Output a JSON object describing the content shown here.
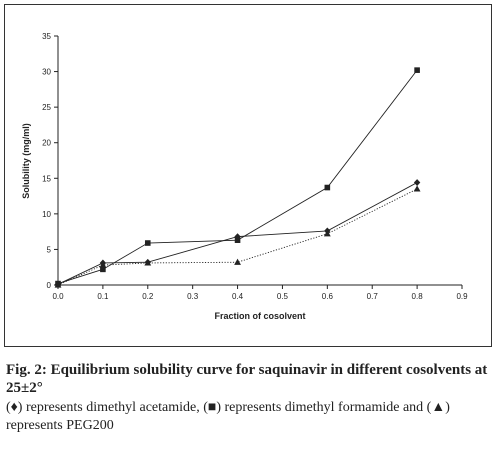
{
  "chart_data": {
    "type": "line",
    "xlabel": "Fraction of cosolvent",
    "ylabel": "Solubility (mg/ml)",
    "xlim": [
      0.0,
      0.9
    ],
    "ylim": [
      0,
      35
    ],
    "x_ticks": [
      "0.0",
      "0.1",
      "0.2",
      "0.3",
      "0.4",
      "0.5",
      "0.6",
      "0.7",
      "0.8",
      "0.9"
    ],
    "y_ticks": [
      "0",
      "5",
      "10",
      "15",
      "20",
      "25",
      "30",
      "35"
    ],
    "grid": false,
    "series": [
      {
        "marker": "diamond",
        "line_style": "solid",
        "x": [
          0.0,
          0.1,
          0.2,
          0.4,
          0.6,
          0.8
        ],
        "y": [
          0.1,
          3.1,
          3.2,
          6.8,
          7.6,
          14.4
        ]
      },
      {
        "marker": "square",
        "line_style": "solid",
        "x": [
          0.0,
          0.1,
          0.2,
          0.4,
          0.6,
          0.8
        ],
        "y": [
          0.2,
          2.2,
          5.9,
          6.3,
          13.7,
          30.2
        ]
      },
      {
        "marker": "triangle",
        "line_style": "dotted",
        "x": [
          0.0,
          0.1,
          0.2,
          0.4,
          0.6,
          0.8
        ],
        "y": [
          0.0,
          2.8,
          3.1,
          3.2,
          7.2,
          13.5
        ]
      }
    ]
  },
  "caption": {
    "title": "Fig. 2: Equilibrium solubility curve for saquinavir in different cosolvents at 25±2°",
    "legend": "(♦) represents dimethyl acetamide, (■) represents dimethyl formamide and (▲) represents PEG200"
  },
  "colors": {
    "ink": "#222222",
    "frame": "#333333",
    "background": "#ffffff"
  }
}
